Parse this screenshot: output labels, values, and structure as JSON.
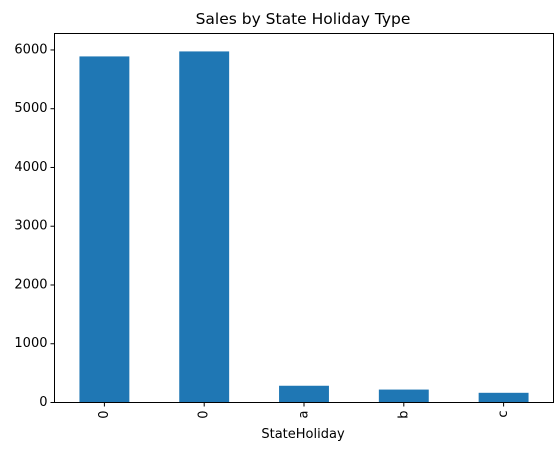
{
  "chart_data": {
    "type": "bar",
    "title": "Sales by State Holiday Type",
    "xlabel": "StateHoliday",
    "ylabel": "",
    "categories": [
      "0",
      "0",
      "a",
      "b",
      "c"
    ],
    "values": [
      5890,
      5975,
      285,
      220,
      165
    ],
    "ylim": [
      0,
      6280
    ],
    "yticks": [
      0,
      1000,
      2000,
      3000,
      4000,
      5000,
      6000
    ],
    "bar_color": "#1f77b4",
    "grid": false,
    "legend": false,
    "xtick_rotation": 90
  }
}
